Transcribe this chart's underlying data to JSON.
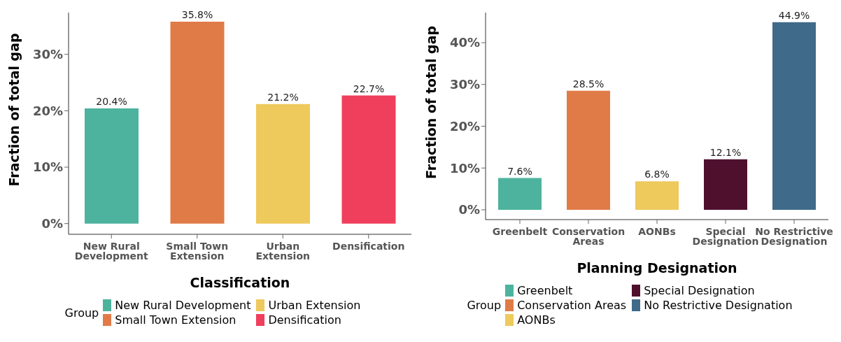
{
  "chart_data": [
    {
      "type": "bar",
      "stacked": true,
      "xlabel": "Classification",
      "ylabel": "Fraction of total gap",
      "legend_title": "Group",
      "categories": [
        "New Rural Development",
        "Small Town Extension",
        "Urban Extension",
        "Densification"
      ],
      "series": [
        {
          "name": "New Rural Development",
          "color": "#4db39e",
          "values": [
            20.4,
            null,
            null,
            null
          ],
          "value_labels": [
            "20.4%",
            null,
            null,
            null
          ]
        },
        {
          "name": "Small Town Extension",
          "color": "#e07b48",
          "values": [
            null,
            35.8,
            null,
            null
          ],
          "value_labels": [
            null,
            "35.8%",
            null,
            null
          ]
        },
        {
          "name": "Urban Extension",
          "color": "#eec95c",
          "values": [
            null,
            null,
            21.2,
            null
          ],
          "value_labels": [
            null,
            null,
            "21.2%",
            null
          ]
        },
        {
          "name": "Densification",
          "color": "#ef3f5c",
          "values": [
            null,
            null,
            null,
            22.7
          ],
          "value_labels": [
            null,
            null,
            null,
            "22.7%"
          ]
        }
      ],
      "ylim": [
        -1.9,
        37.4
      ],
      "yticks": [
        {
          "value": 0,
          "label": "0%"
        },
        {
          "value": 10,
          "label": "10%"
        },
        {
          "value": 20,
          "label": "20%"
        },
        {
          "value": 30,
          "label": "30%"
        }
      ],
      "grid": false,
      "legend": "bottom"
    },
    {
      "type": "bar",
      "stacked": true,
      "xlabel": "Planning Designation",
      "ylabel": "Fraction of total gap",
      "legend_title": "Group",
      "categories": [
        "Greenbelt",
        "Conservation Areas",
        "AONBs",
        "Special Designation",
        "No Restrictive Designation"
      ],
      "series": [
        {
          "name": "Greenbelt",
          "color": "#4db39e",
          "values": [
            7.6,
            null,
            null,
            null,
            null
          ],
          "value_labels": [
            "7.6%",
            null,
            null,
            null,
            null
          ]
        },
        {
          "name": "Conservation Areas",
          "color": "#e07b48",
          "values": [
            null,
            28.5,
            null,
            null,
            null
          ],
          "value_labels": [
            null,
            "28.5%",
            null,
            null,
            null
          ]
        },
        {
          "name": "AONBs",
          "color": "#eec95c",
          "values": [
            null,
            null,
            6.8,
            null,
            null
          ],
          "value_labels": [
            null,
            null,
            "6.8%",
            null,
            null
          ]
        },
        {
          "name": "Special Designation",
          "color": "#4f102e",
          "values": [
            null,
            null,
            null,
            12.1,
            null
          ],
          "value_labels": [
            null,
            null,
            null,
            "12.1%",
            null
          ]
        },
        {
          "name": "No Restrictive Designation",
          "color": "#3f6a8a",
          "values": [
            null,
            null,
            null,
            null,
            44.9
          ],
          "value_labels": [
            null,
            null,
            null,
            null,
            "44.9%"
          ]
        }
      ],
      "ylim": [
        -2.35,
        47.2
      ],
      "yticks": [
        {
          "value": 0,
          "label": "0%"
        },
        {
          "value": 10,
          "label": "10%"
        },
        {
          "value": 20,
          "label": "20%"
        },
        {
          "value": 30,
          "label": "30%"
        },
        {
          "value": 40,
          "label": "40%"
        }
      ],
      "grid": false,
      "legend": "bottom"
    }
  ]
}
